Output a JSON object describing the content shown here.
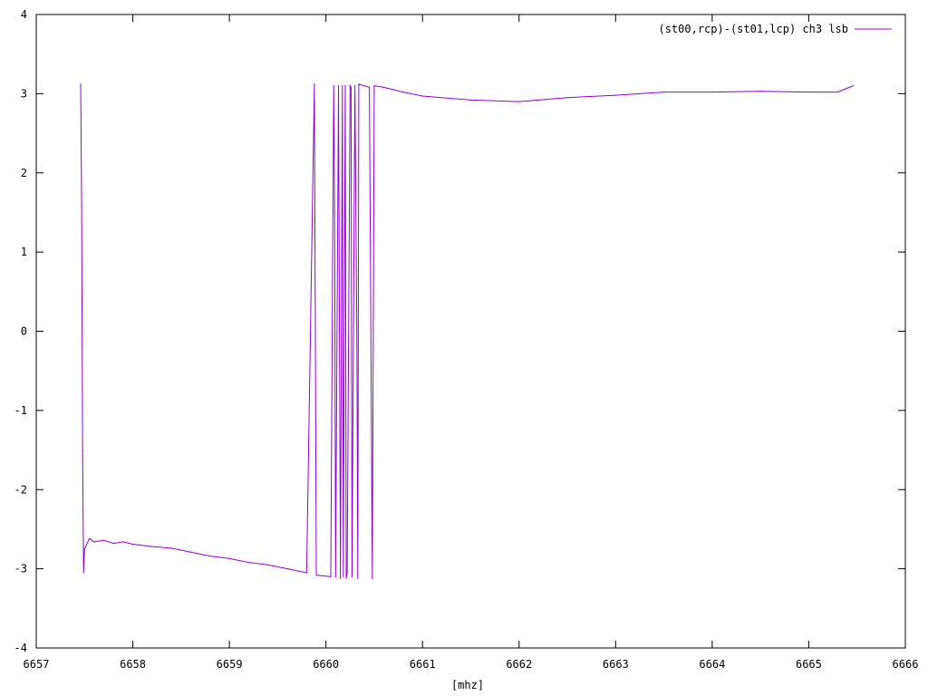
{
  "chart_data": {
    "type": "line",
    "title": "",
    "xlabel": "[mhz]",
    "ylabel": "",
    "xlim": [
      6657,
      6666
    ],
    "ylim": [
      -4,
      4
    ],
    "x_ticks": [
      6657,
      6658,
      6659,
      6660,
      6661,
      6662,
      6663,
      6664,
      6665,
      6666
    ],
    "y_ticks": [
      -4,
      -3,
      -2,
      -1,
      0,
      1,
      2,
      3,
      4
    ],
    "x_tick_labels": [
      "6657",
      "6658",
      "6659",
      "6660",
      "6661",
      "6662",
      "6663",
      "6664",
      "6665",
      "6666"
    ],
    "y_tick_labels": [
      "-4",
      "-3",
      "-2",
      "-1",
      "0",
      "1",
      "2",
      "3",
      "4"
    ],
    "grid": false,
    "legend_position": "top-right",
    "series": [
      {
        "name": "(st00,rcp)-(st01,lcp) ch3 lsb",
        "color": "#9400d3",
        "x": [
          6657.46,
          6657.47,
          6657.48,
          6657.49,
          6657.5,
          6657.55,
          6657.6,
          6657.7,
          6657.8,
          6657.9,
          6658.0,
          6658.2,
          6658.4,
          6658.6,
          6658.8,
          6659.0,
          6659.2,
          6659.4,
          6659.6,
          6659.8,
          6659.88,
          6659.89,
          6659.9,
          6660.05,
          6660.08,
          6660.09,
          6660.1,
          6660.13,
          6660.14,
          6660.15,
          6660.17,
          6660.18,
          6660.2,
          6660.21,
          6660.22,
          6660.25,
          6660.26,
          6660.27,
          6660.3,
          6660.32,
          6660.33,
          6660.34,
          6660.45,
          6660.48,
          6660.49,
          6660.5,
          6660.6,
          6660.7,
          6660.8,
          6661.0,
          6661.5,
          6662.0,
          6662.5,
          6663.0,
          6663.5,
          6664.0,
          6664.5,
          6665.0,
          6665.3,
          6665.46
        ],
        "y": [
          3.12,
          1.6,
          -1.5,
          -3.05,
          -2.75,
          -2.62,
          -2.66,
          -2.64,
          -2.68,
          -2.66,
          -2.69,
          -2.72,
          -2.74,
          -2.79,
          -2.84,
          -2.87,
          -2.92,
          -2.95,
          -3.0,
          -3.05,
          3.12,
          0.0,
          -3.08,
          -3.1,
          3.1,
          1.5,
          -3.1,
          3.1,
          0.0,
          -3.12,
          3.1,
          -3.1,
          3.1,
          -3.12,
          -3.05,
          3.1,
          3.08,
          -3.1,
          3.1,
          0.0,
          -3.12,
          3.12,
          3.08,
          -3.12,
          0.0,
          3.1,
          3.08,
          3.05,
          3.02,
          2.97,
          2.92,
          2.9,
          2.95,
          2.98,
          3.02,
          3.02,
          3.03,
          3.02,
          3.02,
          3.1
        ]
      }
    ]
  }
}
